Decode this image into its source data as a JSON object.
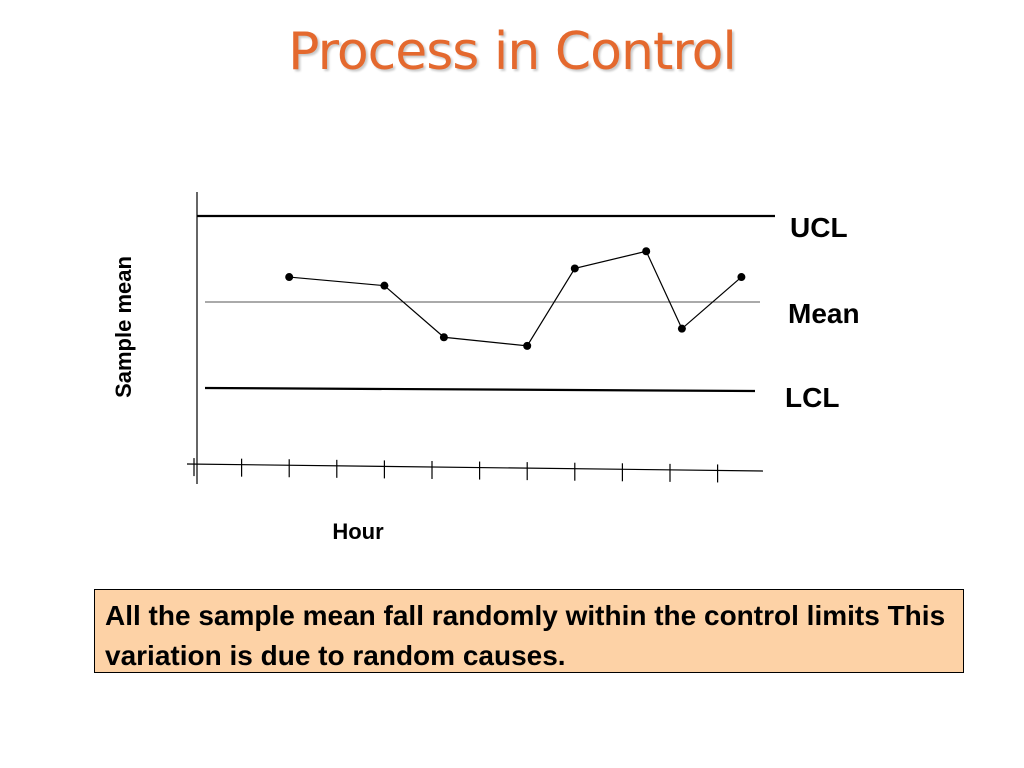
{
  "slide": {
    "title": "Process in Control",
    "caption": "All the sample mean fall randomly within the control limits  This variation is due to random causes."
  },
  "colors": {
    "title": "#e4692e",
    "caption_background": "#fdd2a6",
    "line": "#000000",
    "mean_line": "#555555"
  },
  "chart_data": {
    "type": "line",
    "xlabel": "Hour",
    "ylabel": "Sample mean",
    "series": [
      {
        "x": [
          2,
          4,
          5.25,
          7,
          8,
          9.5,
          10.25,
          11.5
        ],
        "values": [
          0.29,
          0.19,
          -0.41,
          -0.51,
          0.39,
          0.59,
          -0.31,
          0.29
        ]
      }
    ],
    "control_limits": [
      {
        "label": "UCL",
        "value": 1.0
      },
      {
        "label": "Mean",
        "value": 0.0
      },
      {
        "label": "LCL",
        "value": -1.0
      }
    ],
    "tick_count": 12,
    "grid": false,
    "legend": "none"
  }
}
